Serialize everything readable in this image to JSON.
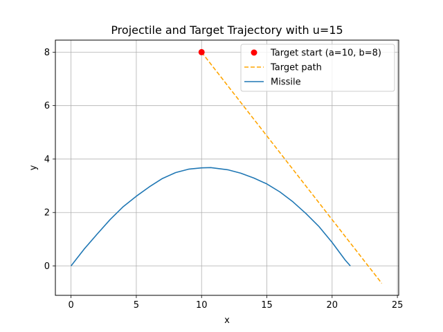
{
  "chart_data": {
    "type": "line",
    "title": "Projectile and Target Trajectory with u=15",
    "xlabel": "x",
    "ylabel": "y",
    "xlim": [
      -1.2,
      25.1
    ],
    "ylim": [
      -1.1,
      8.45
    ],
    "x_ticks": [
      0,
      5,
      10,
      15,
      20,
      25
    ],
    "y_ticks": [
      0,
      2,
      4,
      6,
      8
    ],
    "grid": true,
    "legend_position": "top-right",
    "series": [
      {
        "name": "Target start (a=10, b=8)",
        "kind": "scatter",
        "color": "#ff0000",
        "points": [
          [
            10,
            8
          ]
        ]
      },
      {
        "name": "Target path",
        "kind": "dashed-line",
        "color": "#ffa500",
        "points": [
          [
            10,
            8
          ],
          [
            23.8,
            -0.65
          ]
        ]
      },
      {
        "name": "Missile",
        "kind": "line",
        "color": "#1f77b4",
        "points": [
          [
            0,
            0
          ],
          [
            1,
            0.63
          ],
          [
            2,
            1.19
          ],
          [
            3,
            1.74
          ],
          [
            4,
            2.22
          ],
          [
            5,
            2.61
          ],
          [
            6,
            2.96
          ],
          [
            7,
            3.27
          ],
          [
            8,
            3.49
          ],
          [
            9,
            3.62
          ],
          [
            10,
            3.67
          ],
          [
            10.7,
            3.68
          ],
          [
            12,
            3.6
          ],
          [
            13,
            3.47
          ],
          [
            14,
            3.29
          ],
          [
            15,
            3.07
          ],
          [
            16,
            2.77
          ],
          [
            17,
            2.4
          ],
          [
            18,
            1.96
          ],
          [
            19,
            1.47
          ],
          [
            20,
            0.88
          ],
          [
            21,
            0.22
          ],
          [
            21.4,
            0
          ]
        ]
      }
    ]
  }
}
